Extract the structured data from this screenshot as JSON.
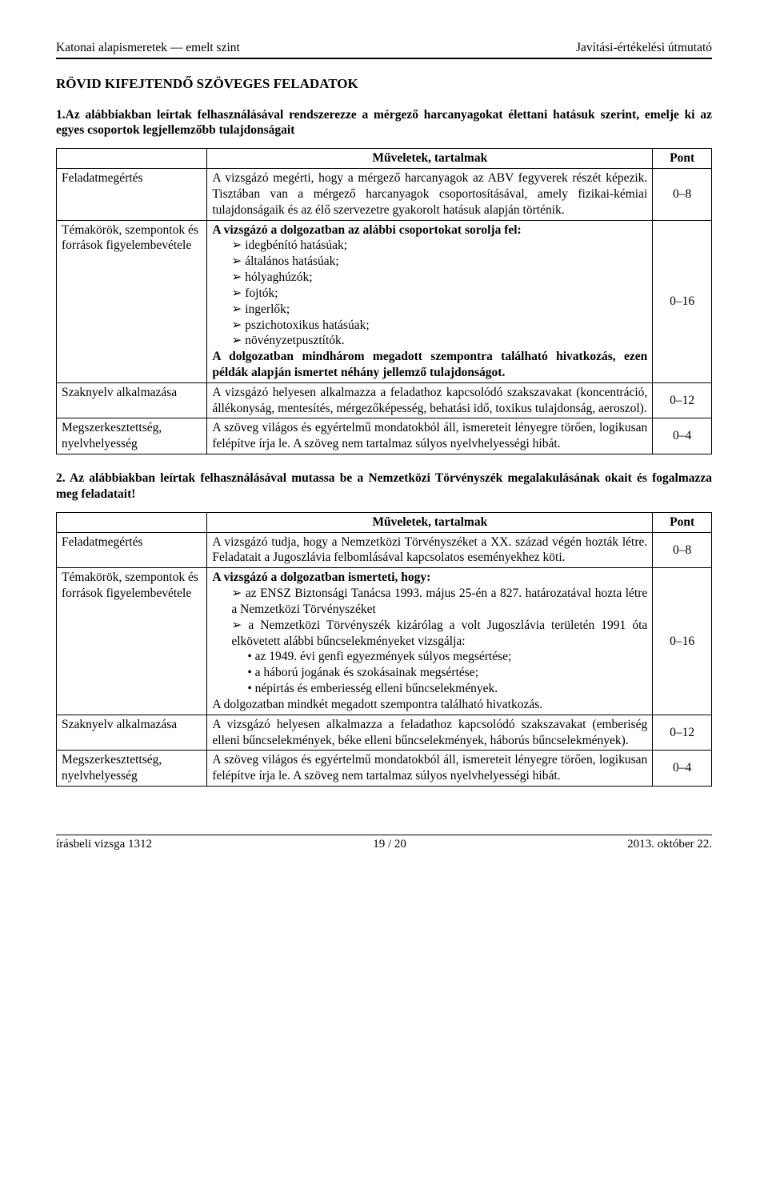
{
  "header": {
    "left": "Katonai alapismeretek — emelt szint",
    "right": "Javítási-értékelési útmutató"
  },
  "sectionTitle": "RÖVID KIFEJTENDŐ SZÖVEGES FELADATOK",
  "task1": {
    "intro": "1.Az alábbiakban leírtak felhasználásával rendszerezze a mérgező harcanyagokat élettani hatásuk szerint, emelje ki az egyes csoportok legjellemzőbb tulajdonságait",
    "colHeader": "Műveletek, tartalmak",
    "ptHeader": "Pont",
    "rows": {
      "r1": {
        "label": "Feladatmegértés",
        "text": "A vizsgázó megérti, hogy a mérgező harcanyagok az ABV fegyverek részét képezik. Tisztában van a mérgező harcanyagok csoportosításával, amely fizikai-kémiai tulajdonságaik és az élő szervezetre gyakorolt hatásuk alapján történik.",
        "pt": "0–8"
      },
      "r2": {
        "label": "Témakörök, szempontok és források figyelembevétele",
        "lead": "A vizsgázó a dolgozatban az alábbi csoportokat sorolja fel:",
        "items": {
          "i1": "idegbénító hatásúak;",
          "i2": "általános hatásúak;",
          "i3": "hólyaghúzók;",
          "i4": "fojtók;",
          "i5": "ingerlők;",
          "i6": "pszichotoxikus hatásúak;",
          "i7": "növényzetpusztítók."
        },
        "tail": "A dolgozatban mindhárom megadott szempontra található hivatkozás, ezen példák alapján ismertet néhány jellemző tulajdonságot.",
        "pt": "0–16"
      },
      "r3": {
        "label": "Szaknyelv alkalmazása",
        "text": "A vizsgázó helyesen alkalmazza a feladathoz kapcsolódó szak­szavakat (koncentráció, állékonyság, mentesítés, mérgezőképesség, behatási idő, toxikus tulajdonság, aeroszol).",
        "pt": "0–12"
      },
      "r4": {
        "label": "Megszerkesztettség, nyelvhelyesség",
        "text": "A szöveg világos és egyértelmű mondatokból áll, ismereteit lényegre törően, logikusan felépítve írja le. A szöveg nem tartalmaz súlyos nyelvhelyességi hibát.",
        "pt": "0–4"
      }
    }
  },
  "task2": {
    "intro": "2. Az alábbiakban leírtak felhasználásával mutassa be a Nemzetközi Törvényszék megalakulásának okait és fogalmazza meg feladatait!",
    "colHeader": "Műveletek, tartalmak",
    "ptHeader": "Pont",
    "rows": {
      "r1": {
        "label": "Feladatmegértés",
        "text": "A vizsgázó tudja, hogy a Nemzetközi Törvényszéket a XX. század végén hozták létre. Feladatait a Jugoszlávia felbomlásával kapcsolatos eseményekhez köti.",
        "pt": "0–8"
      },
      "r2": {
        "label": "Témakörök, szempontok és források figyelembevétele",
        "lead": "A vizsgázó a dolgozatban ismerteti, hogy:",
        "arrow": {
          "a1": "az ENSZ Biztonsági Tanácsa 1993. május 25-én a 827. határoza­tával hozta létre a Nemzetközi Törvényszéket",
          "a2": "a Nemzetközi Törvényszék kizárólag a volt Jugoszlávia területén 1991 óta elkövetett alábbi bűncselekményeket vizsgálja:"
        },
        "bullet": {
          "b1": "az 1949. évi genfi egyezmények súlyos megsértése;",
          "b2": "a háború jogának és szokásainak megsértése;",
          "b3": "népirtás és emberiesség elleni bűncselekmények."
        },
        "tail": "A dolgozatban mindkét megadott szempontra található hivatkozás.",
        "pt": "0–16"
      },
      "r3": {
        "label": "Szaknyelv alkalmazása",
        "text": "A vizsgázó helyesen alkalmazza a feladathoz kapcsolódó szakszavakat (emberiség elleni bűncselekmények, béke elleni bűn­cselekmények, háborús bűncselekmények).",
        "pt": "0–12"
      },
      "r4": {
        "label": "Megszerkesztettség, nyelvhelyesség",
        "text": "A szöveg világos és egyértelmű mondatokból áll, ismereteit lényegre törően, logikusan felépítve írja le. A szöveg nem tartalmaz súlyos nyelvhelyességi hibát.",
        "pt": "0–4"
      }
    }
  },
  "footer": {
    "left": "írásbeli vizsga 1312",
    "center": "19 / 20",
    "right": "2013. október 22."
  }
}
